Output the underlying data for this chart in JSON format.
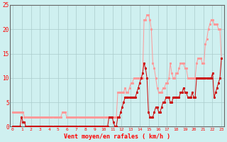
{
  "xlabel": "Vent moyen/en rafales ( km/h )",
  "bg_color": "#cff0f0",
  "grid_color": "#aacccc",
  "axis_color": "#666666",
  "label_color": "#ff0000",
  "avg_color": "#cc0000",
  "gust_color": "#ff9999",
  "ylim": [
    0,
    25
  ],
  "yticks": [
    0,
    5,
    10,
    15,
    20,
    25
  ],
  "hours": [
    0,
    1,
    2,
    3,
    4,
    5,
    6,
    7,
    8,
    9,
    10,
    11,
    12,
    13,
    14,
    15,
    16,
    17,
    18,
    19,
    20,
    21,
    22,
    23
  ],
  "n_per_hour": 6,
  "wind_avg": [
    0,
    0,
    0,
    0,
    0,
    0,
    2,
    1,
    1,
    0,
    0,
    0,
    0,
    0,
    0,
    0,
    0,
    0,
    0,
    0,
    0,
    0,
    0,
    0,
    0,
    0,
    0,
    0,
    0,
    0,
    0,
    0,
    0,
    0,
    0,
    0,
    0,
    0,
    0,
    0,
    0,
    0,
    0,
    0,
    0,
    0,
    0,
    0,
    0,
    0,
    0,
    0,
    0,
    0,
    0,
    0,
    0,
    0,
    0,
    0,
    0,
    0,
    0,
    0,
    0,
    0,
    2,
    2,
    2,
    1,
    0,
    0,
    2,
    2,
    3,
    4,
    5,
    6,
    6,
    6,
    6,
    6,
    6,
    6,
    6,
    7,
    8,
    9,
    10,
    11,
    13,
    12,
    10,
    3,
    2,
    2,
    2,
    3,
    4,
    4,
    3,
    3,
    4,
    5,
    5,
    6,
    6,
    6,
    5,
    5,
    6,
    6,
    6,
    6,
    6,
    7,
    7,
    8,
    7,
    7,
    6,
    6,
    6,
    7,
    6,
    6,
    10,
    10,
    10,
    10,
    10,
    10,
    10,
    10,
    10,
    10,
    10,
    11,
    6,
    7,
    8,
    9,
    10,
    14
  ],
  "wind_gust": [
    3,
    3,
    3,
    3,
    3,
    3,
    3,
    3,
    2,
    2,
    2,
    2,
    2,
    2,
    2,
    2,
    2,
    2,
    2,
    2,
    2,
    2,
    2,
    2,
    2,
    2,
    2,
    2,
    2,
    2,
    2,
    2,
    2,
    2,
    3,
    3,
    3,
    2,
    2,
    2,
    2,
    2,
    2,
    2,
    2,
    2,
    2,
    2,
    2,
    2,
    2,
    2,
    2,
    2,
    2,
    2,
    2,
    2,
    2,
    2,
    2,
    2,
    2,
    2,
    2,
    2,
    2,
    2,
    2,
    2,
    2,
    2,
    7,
    7,
    7,
    7,
    7,
    8,
    7,
    7,
    8,
    9,
    9,
    10,
    10,
    10,
    10,
    10,
    10,
    10,
    22,
    22,
    23,
    23,
    22,
    20,
    13,
    12,
    10,
    8,
    7,
    7,
    7,
    8,
    8,
    9,
    9,
    10,
    13,
    11,
    10,
    10,
    11,
    11,
    12,
    13,
    13,
    13,
    12,
    12,
    10,
    10,
    10,
    10,
    10,
    10,
    13,
    14,
    14,
    14,
    13,
    13,
    17,
    18,
    20,
    21,
    22,
    22,
    21,
    21,
    21,
    20,
    20,
    14
  ]
}
